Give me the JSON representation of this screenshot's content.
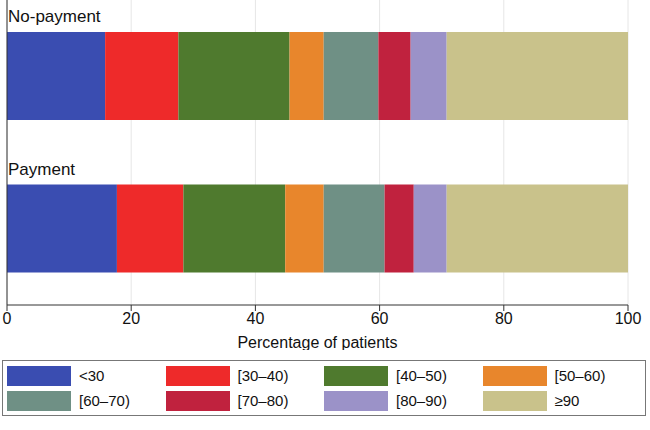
{
  "chart_data": {
    "type": "bar",
    "orientation": "horizontal",
    "stacked": true,
    "grid": true,
    "legend": "bottom",
    "x_label": "Percentage of patients",
    "categories": [
      "No-payment",
      "Payment"
    ],
    "xlim": [
      0,
      100
    ],
    "xticks": [
      0,
      20,
      40,
      60,
      80,
      100
    ],
    "series": [
      {
        "name": "<30",
        "color": "#3a4db1",
        "values": [
          15.8,
          17.7
        ]
      },
      {
        "name": "[30–40)",
        "color": "#ee2a2a",
        "values": [
          11.8,
          10.7
        ]
      },
      {
        "name": "[40–50)",
        "color": "#4f7a2e",
        "values": [
          17.9,
          16.4
        ]
      },
      {
        "name": "[50–60)",
        "color": "#e8862c",
        "values": [
          5.5,
          6.2
        ]
      },
      {
        "name": "[60–70)",
        "color": "#6f9085",
        "values": [
          8.8,
          9.8
        ]
      },
      {
        "name": "[70–80)",
        "color": "#c0223e",
        "values": [
          5.2,
          4.7
        ]
      },
      {
        "name": "[80–90)",
        "color": "#9b92c8",
        "values": [
          5.8,
          5.3
        ]
      },
      {
        "name": "≥90",
        "color": "#c9c28b",
        "values": [
          29.2,
          29.2
        ]
      }
    ]
  }
}
